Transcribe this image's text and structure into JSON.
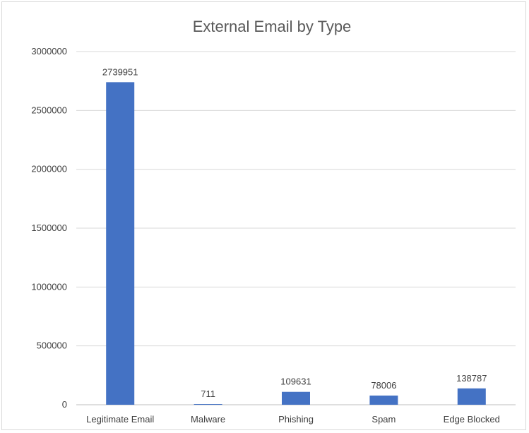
{
  "chart_data": {
    "type": "bar",
    "title": "External Email by Type",
    "xlabel": "",
    "ylabel": "",
    "categories": [
      "Legitimate Email",
      "Malware",
      "Phishing",
      "Spam",
      "Edge Blocked"
    ],
    "values": [
      2739951,
      711,
      109631,
      78006,
      138787
    ],
    "data_labels": [
      "2739951",
      "711",
      "109631",
      "78006",
      "138787"
    ],
    "ylim": [
      0,
      3000000
    ],
    "yticks": [
      0,
      500000,
      1000000,
      1500000,
      2000000,
      2500000,
      3000000
    ],
    "ytick_labels": [
      "0",
      "500000",
      "1000000",
      "1500000",
      "2000000",
      "2500000",
      "3000000"
    ],
    "grid": true,
    "legend": "none",
    "bar_color": "#4472c4"
  }
}
